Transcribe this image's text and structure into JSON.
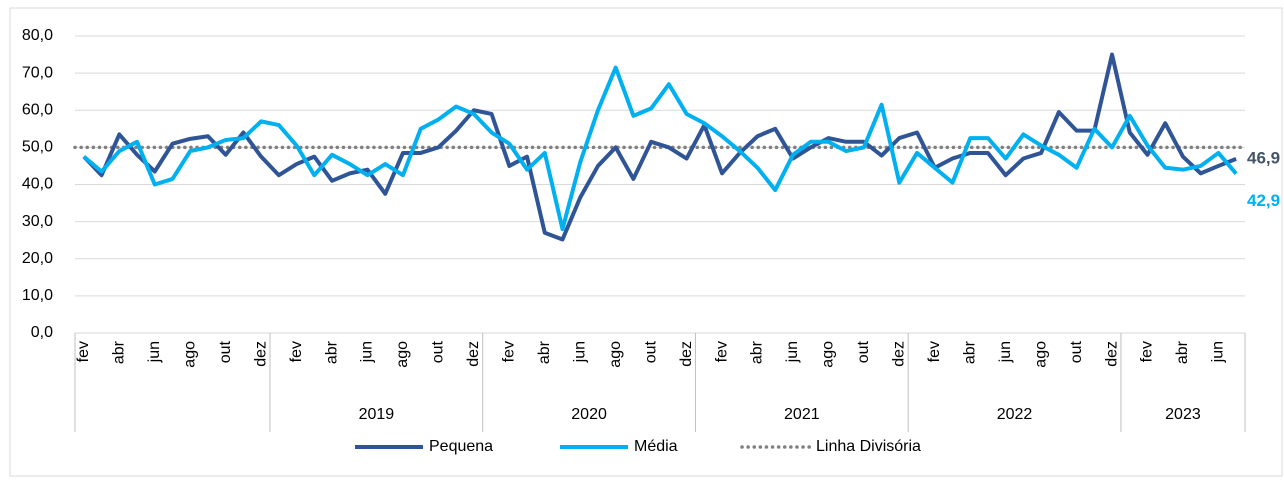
{
  "chart_data": {
    "type": "line",
    "categories": [
      "fev",
      null,
      "abr",
      null,
      "jun",
      null,
      "ago",
      null,
      "out",
      null,
      "dez",
      null,
      "fev",
      null,
      "abr",
      null,
      "jun",
      null,
      "ago",
      null,
      "out",
      null,
      "dez",
      null,
      "fev",
      null,
      "abr",
      null,
      "jun",
      null,
      "ago",
      null,
      "out",
      null,
      "dez",
      null,
      "fev",
      null,
      "abr",
      null,
      "jun",
      null,
      "ago",
      null,
      "out",
      null,
      "dez",
      null,
      "fev",
      null,
      "abr",
      null,
      "jun",
      null,
      "ago",
      null,
      "out",
      null,
      "dez",
      null,
      "fev",
      null,
      "abr",
      null,
      "jun",
      null
    ],
    "groups": [
      null,
      "2019",
      "2020",
      "2021",
      "2022",
      "2023"
    ],
    "series": [
      {
        "name": "Pequena",
        "color": "#2f5597",
        "last_label": "46,9",
        "values": [
          47.5,
          42.5,
          53.5,
          48,
          43.5,
          51,
          52.3,
          53,
          48,
          54,
          47.5,
          42.5,
          45.5,
          47.5,
          41,
          43,
          44,
          37.5,
          48.5,
          48.5,
          50,
          54.5,
          60,
          59,
          45,
          47.5,
          27,
          25.2,
          36.5,
          45,
          50,
          41.5,
          51.5,
          50,
          47,
          56,
          43,
          48.5,
          53,
          55,
          47,
          50,
          52.5,
          51.5,
          51.5,
          47.8,
          52.5,
          54,
          44.5,
          47,
          48.5,
          48.5,
          42.5,
          47,
          48.5,
          59.5,
          54.5,
          54.5,
          75,
          54,
          48,
          56.5,
          47.5,
          43,
          45,
          46.9
        ]
      },
      {
        "name": "Média",
        "color": "#00b0f0",
        "last_label": "42,9",
        "values": [
          47.5,
          43.5,
          49,
          51.5,
          40,
          41.5,
          49,
          50,
          52,
          52.5,
          57,
          56,
          50.5,
          42.5,
          48,
          45.5,
          42.5,
          45.5,
          42.5,
          55,
          57.5,
          61,
          59,
          54,
          51,
          44,
          48.5,
          28,
          46,
          60,
          71.5,
          58.5,
          60.5,
          67,
          59,
          56.5,
          53,
          49,
          44.5,
          38.5,
          48,
          51.5,
          51.5,
          49,
          50,
          61.5,
          40.5,
          48.5,
          44.5,
          40.5,
          52.5,
          52.5,
          47,
          53.5,
          50.5,
          48,
          44.5,
          55,
          50,
          58.5,
          50.5,
          44.5,
          44,
          45,
          48.5,
          42.9
        ]
      }
    ],
    "divider": {
      "name": "Linha Divisória",
      "color": "#808080",
      "value": 50
    },
    "ylim": [
      0,
      80
    ],
    "yticks": [
      {
        "value": 0,
        "label": "0,0"
      },
      {
        "value": 10,
        "label": "10,0"
      },
      {
        "value": 20,
        "label": "20,0"
      },
      {
        "value": 30,
        "label": "30,0"
      },
      {
        "value": 40,
        "label": "40,0"
      },
      {
        "value": 50,
        "label": "50,0"
      },
      {
        "value": 60,
        "label": "60,0"
      },
      {
        "value": 70,
        "label": "70,0"
      },
      {
        "value": 80,
        "label": "80,0"
      }
    ],
    "grid": true
  }
}
